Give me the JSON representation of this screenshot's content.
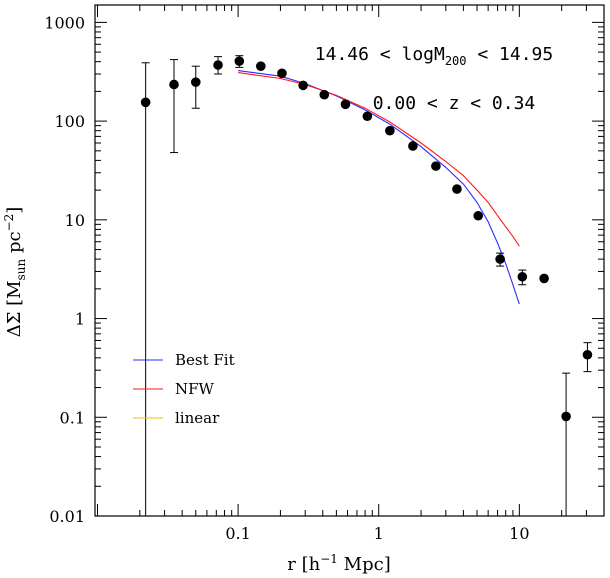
{
  "chart_data": {
    "type": "scatter",
    "xscale": "log",
    "yscale": "log",
    "xlim": [
      0.0096,
      40
    ],
    "ylim": [
      0.01,
      1500
    ],
    "xticks": [
      {
        "v": 0.1,
        "label": "0.1"
      },
      {
        "v": 1,
        "label": "1"
      },
      {
        "v": 10,
        "label": "10"
      }
    ],
    "yticks": [
      {
        "v": 0.01,
        "label": "0.01"
      },
      {
        "v": 0.1,
        "label": "0.1"
      },
      {
        "v": 1,
        "label": "1"
      },
      {
        "v": 10,
        "label": "10"
      },
      {
        "v": 100,
        "label": "100"
      },
      {
        "v": 1000,
        "label": "1000"
      }
    ],
    "xlabel": {
      "pre": "r [h",
      "sup": "−1",
      "post": " Mpc]"
    },
    "ylabel": {
      "pre": "ΔΣ  [M",
      "sub": "sun",
      "mid": "  pc",
      "sup": "−2",
      "post": "]"
    },
    "annotations": [
      {
        "pre": "14.46 < logM",
        "sub": "200",
        "post": " < 14.95"
      },
      {
        "text": "0.00 < z < 0.34"
      }
    ],
    "legend_position": "lower-left",
    "points": {
      "name": "data",
      "color": "#000000",
      "values": [
        {
          "x": 0.022,
          "y": 155,
          "lo": 0.01,
          "hi": 390
        },
        {
          "x": 0.035,
          "y": 235,
          "lo": 48,
          "hi": 420
        },
        {
          "x": 0.05,
          "y": 248,
          "lo": 135,
          "hi": 360
        },
        {
          "x": 0.072,
          "y": 370,
          "lo": 300,
          "hi": 450
        },
        {
          "x": 0.102,
          "y": 405,
          "lo": 350,
          "hi": 460
        },
        {
          "x": 0.145,
          "y": 360
        },
        {
          "x": 0.205,
          "y": 305
        },
        {
          "x": 0.29,
          "y": 230
        },
        {
          "x": 0.41,
          "y": 185
        },
        {
          "x": 0.58,
          "y": 148
        },
        {
          "x": 0.83,
          "y": 112
        },
        {
          "x": 1.2,
          "y": 80
        },
        {
          "x": 1.75,
          "y": 56
        },
        {
          "x": 2.55,
          "y": 35
        },
        {
          "x": 3.6,
          "y": 20.5
        },
        {
          "x": 5.1,
          "y": 11
        },
        {
          "x": 7.3,
          "y": 4,
          "lo": 3.4,
          "hi": 4.6
        },
        {
          "x": 10.5,
          "y": 2.65,
          "lo": 2.2,
          "hi": 3.1
        },
        {
          "x": 15,
          "y": 2.55
        },
        {
          "x": 21.5,
          "y": 0.102,
          "lo": 0.01,
          "hi": 0.28
        },
        {
          "x": 30.5,
          "y": 0.43,
          "lo": 0.29,
          "hi": 0.57
        }
      ]
    },
    "series": [
      {
        "name": "Best Fit",
        "color": "#2a2aff",
        "x": [
          0.1,
          0.2,
          0.3,
          0.5,
          0.8,
          1.2,
          2,
          3,
          4,
          5,
          6,
          7,
          8,
          9,
          10
        ],
        "y": [
          325,
          285,
          240,
          180,
          130,
          93,
          55,
          34,
          23,
          15,
          9.6,
          5.8,
          3.6,
          2.2,
          1.4
        ]
      },
      {
        "name": "NFW",
        "color": "#ff1a1a",
        "x": [
          0.1,
          0.2,
          0.3,
          0.5,
          0.8,
          1.2,
          2,
          3,
          4,
          5,
          6,
          7,
          8,
          9,
          10
        ],
        "y": [
          310,
          270,
          235,
          182,
          135,
          98,
          60,
          39,
          28,
          20,
          15,
          11,
          8.5,
          6.8,
          5.4
        ]
      },
      {
        "name": "linear",
        "color": "#f2c200",
        "x": [],
        "y": []
      }
    ]
  }
}
